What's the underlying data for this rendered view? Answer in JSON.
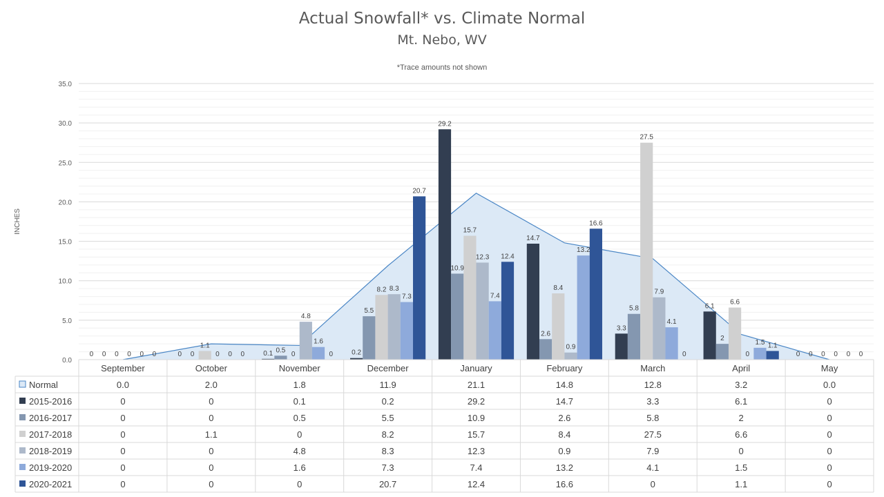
{
  "chart_data": {
    "type": "bar",
    "title": "Actual Snowfall* vs. Climate Normal",
    "subtitle": "Mt. Nebo, WV",
    "note": "*Trace amounts not shown",
    "ylabel": "INCHES",
    "ylim": [
      0,
      35
    ],
    "yticks": [
      "0.0",
      "5.0",
      "10.0",
      "15.0",
      "20.0",
      "25.0",
      "30.0",
      "35.0"
    ],
    "grid": true,
    "categories": [
      "September",
      "October",
      "November",
      "December",
      "January",
      "February",
      "March",
      "April",
      "May"
    ],
    "normal": {
      "name": "Normal",
      "type": "area",
      "color": "#dce9f6",
      "line_color": "#4a86c5",
      "values": [
        0.0,
        2.0,
        1.8,
        11.9,
        21.1,
        14.8,
        12.8,
        3.2,
        0.0
      ],
      "labels": [
        "0.0",
        "2.0",
        "1.8",
        "11.9",
        "21.1",
        "14.8",
        "12.8",
        "3.2",
        "0.0"
      ]
    },
    "series": [
      {
        "name": "2015-2016",
        "color": "#323e51",
        "values": [
          0,
          0,
          0.1,
          0.2,
          29.2,
          14.7,
          3.3,
          6.1,
          0
        ]
      },
      {
        "name": "2016-2017",
        "color": "#8497b0",
        "values": [
          0,
          0,
          0.5,
          5.5,
          10.9,
          2.6,
          5.8,
          2,
          0
        ]
      },
      {
        "name": "2017-2018",
        "color": "#d0d0d0",
        "values": [
          0,
          1.1,
          0,
          8.2,
          15.7,
          8.4,
          27.5,
          6.6,
          0
        ]
      },
      {
        "name": "2018-2019",
        "color": "#adb9ca",
        "values": [
          0,
          0,
          4.8,
          8.3,
          12.3,
          0.9,
          7.9,
          0,
          0
        ]
      },
      {
        "name": "2019-2020",
        "color": "#8eaadb",
        "values": [
          0,
          0,
          1.6,
          7.3,
          7.4,
          13.2,
          4.1,
          1.5,
          0
        ]
      },
      {
        "name": "2020-2021",
        "color": "#2f5597",
        "values": [
          0,
          0,
          0,
          20.7,
          12.4,
          16.6,
          0,
          1.1,
          0
        ]
      }
    ]
  }
}
